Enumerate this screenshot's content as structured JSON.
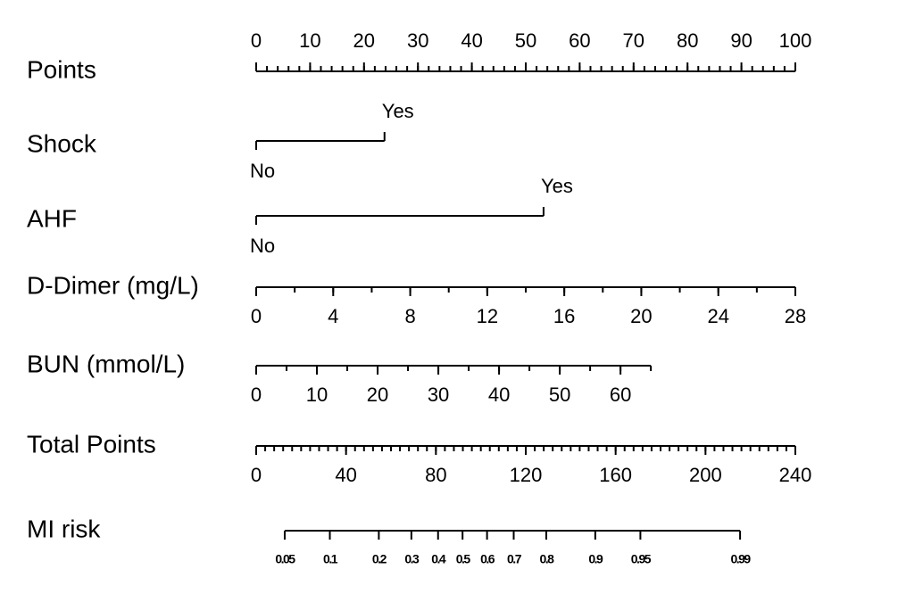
{
  "chart_data": {
    "type": "nomogram",
    "rows": [
      {
        "label": "Points",
        "kind": "points",
        "lim": [
          0,
          100
        ],
        "ticks": [
          0,
          10,
          20,
          30,
          40,
          50,
          60,
          70,
          80,
          90,
          100
        ],
        "minor_step": 2
      },
      {
        "label": "Shock",
        "kind": "categorical",
        "categories": [
          "No",
          "Yes"
        ],
        "points_lim": [
          0,
          23.8
        ]
      },
      {
        "label": "AHF",
        "kind": "categorical",
        "categories": [
          "No",
          "Yes"
        ],
        "points_lim": [
          0,
          53.3
        ]
      },
      {
        "label": "D-Dimer (mg/L)",
        "kind": "axis",
        "lim": [
          0,
          28
        ],
        "points_lim": [
          0,
          100
        ],
        "ticks": [
          0,
          4,
          8,
          12,
          16,
          20,
          24,
          28
        ],
        "minor_step": 2
      },
      {
        "label": "BUN (mmol/L)",
        "kind": "axis",
        "lim": [
          0,
          65
        ],
        "points_lim": [
          0,
          73.2
        ],
        "ticks": [
          0,
          10,
          20,
          30,
          40,
          50,
          60
        ],
        "minor_step": 5
      },
      {
        "label": "Total Points",
        "kind": "total",
        "lim": [
          0,
          240
        ],
        "ticks": [
          0,
          40,
          80,
          120,
          160,
          200,
          240
        ],
        "minor_step": 4
      },
      {
        "label": "MI risk",
        "kind": "risk",
        "scale": "logit",
        "lim": [
          0.05,
          0.99
        ],
        "points_lim": [
          12.7,
          215.4
        ],
        "ticks": [
          0.05,
          0.1,
          0.2,
          0.3,
          0.4,
          0.5,
          0.6,
          0.7,
          0.8,
          0.9,
          0.95,
          0.99
        ]
      }
    ]
  }
}
